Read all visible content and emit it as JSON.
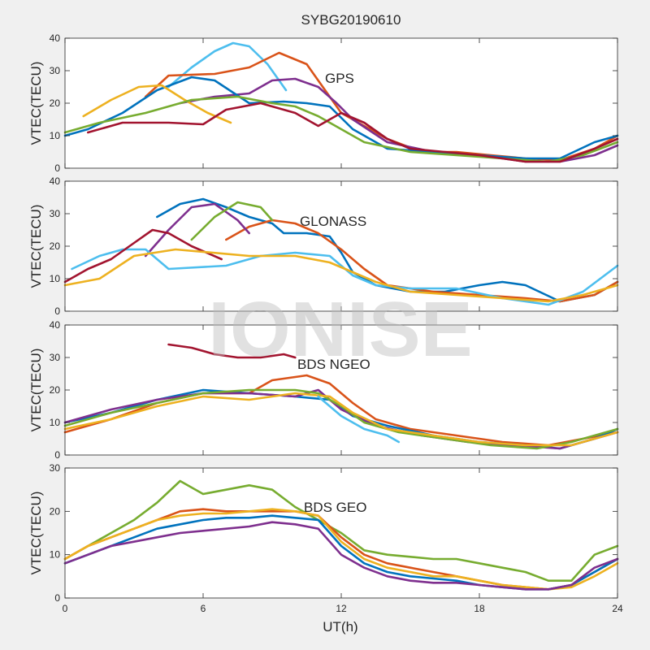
{
  "figure": {
    "title": "SYBG20190610",
    "xlabel": "UT(h)",
    "watermark": "IONISE"
  },
  "chart_data": [
    {
      "type": "line",
      "panel_label": "GPS",
      "ylabel": "VTEC(TECU)",
      "xlim": [
        0,
        24
      ],
      "ylim": [
        0,
        40
      ],
      "xticks": [
        0,
        6,
        12,
        18,
        24
      ],
      "yticks": [
        0,
        10,
        20,
        30,
        40
      ],
      "grid": false,
      "series": [
        {
          "color": "#4dbeee",
          "x": [
            4.5,
            5.5,
            6.5,
            7.3,
            8.0,
            8.8,
            9.6
          ],
          "y": [
            25,
            31,
            36,
            38.5,
            37.5,
            32,
            24
          ]
        },
        {
          "color": "#d95319",
          "x": [
            3.5,
            4.5,
            6.5,
            8.0,
            9.3,
            10.5,
            11.2,
            12.0,
            13.0,
            14.0,
            15.5,
            17.0,
            18.5,
            20.0,
            21.5,
            23.0,
            24.0
          ],
          "y": [
            22,
            28.5,
            29,
            31,
            35.5,
            32,
            25,
            17,
            13,
            9,
            5,
            5,
            4,
            3,
            2.5,
            6,
            10
          ]
        },
        {
          "color": "#7e2f8e",
          "x": [
            5.0,
            6.5,
            8.0,
            9.0,
            10.0,
            11.0,
            11.8,
            12.5,
            14.0,
            16.0,
            18.0,
            20.0,
            21.5,
            23.0,
            24.0
          ],
          "y": [
            20,
            22,
            23,
            27,
            27.5,
            25,
            20,
            15,
            8,
            5,
            4,
            2,
            2,
            4,
            7
          ]
        },
        {
          "color": "#0072bd",
          "x": [
            0,
            1.0,
            2.5,
            4.0,
            5.5,
            6.5,
            8.0,
            9.5,
            10.5,
            11.5,
            12.5,
            14.0,
            16.0,
            18.0,
            20.0,
            21.5,
            23.0,
            24.0
          ],
          "y": [
            10,
            12,
            17,
            24,
            28,
            27,
            20,
            20.5,
            20,
            19,
            12,
            6,
            5,
            4,
            3,
            3,
            8,
            10
          ]
        },
        {
          "color": "#edb120",
          "x": [
            0.8,
            2.0,
            3.2,
            4.2,
            5.2,
            6.2,
            7.2
          ],
          "y": [
            16,
            21,
            25,
            25.5,
            21,
            17,
            14
          ]
        },
        {
          "color": "#77ac30",
          "x": [
            0,
            1.5,
            3.5,
            5.5,
            7.5,
            9.0,
            10.0,
            11.0,
            12.0,
            13.0,
            15.0,
            17.0,
            19.0,
            21.0,
            22.5,
            24.0
          ],
          "y": [
            11,
            14,
            17,
            21,
            22,
            20,
            19,
            16,
            12,
            8,
            5,
            4,
            3,
            2,
            4,
            8
          ]
        },
        {
          "color": "#a2142f",
          "x": [
            1.0,
            2.5,
            4.5,
            6.0,
            7.0,
            8.5,
            10.0,
            11.0,
            12.0,
            13.0,
            14.0,
            15.0,
            16.5,
            18.0,
            20.0,
            21.5,
            23.0,
            24.0
          ],
          "y": [
            11,
            14,
            14,
            13.5,
            18,
            20,
            17,
            13,
            17,
            14,
            9,
            6,
            5,
            4,
            2,
            2,
            6,
            9
          ]
        }
      ]
    },
    {
      "type": "line",
      "panel_label": "GLONASS",
      "ylabel": "VTEC(TECU)",
      "xlim": [
        0,
        24
      ],
      "ylim": [
        0,
        40
      ],
      "xticks": [
        0,
        6,
        12,
        18,
        24
      ],
      "yticks": [
        0,
        10,
        20,
        30,
        40
      ],
      "grid": false,
      "series": [
        {
          "color": "#0072bd",
          "x": [
            4.0,
            5.0,
            6.0,
            7.0,
            8.0,
            9.0,
            9.5,
            10.5,
            11.5,
            12.0,
            12.5,
            13.5,
            15.0,
            16.5,
            18.0,
            19.0,
            20.0,
            21.5,
            23.0,
            24.0
          ],
          "y": [
            29,
            33,
            34.5,
            32,
            29,
            27,
            24,
            24,
            23,
            18,
            12,
            8,
            6,
            6,
            8,
            9,
            8,
            3,
            5,
            9
          ]
        },
        {
          "color": "#d95319",
          "x": [
            7.0,
            8.0,
            9.0,
            10.0,
            11.0,
            12.0,
            13.0,
            14.0,
            16.0,
            18.0,
            20.0,
            21.5,
            23.0,
            24.0
          ],
          "y": [
            22,
            26,
            28,
            27,
            24,
            19,
            13,
            8,
            6,
            5,
            4,
            3,
            5,
            9
          ]
        },
        {
          "color": "#7e2f8e",
          "x": [
            3.5,
            4.5,
            5.5,
            6.5,
            7.5,
            8.0
          ],
          "y": [
            17,
            25,
            32,
            33,
            28,
            24
          ]
        },
        {
          "color": "#77ac30",
          "x": [
            5.5,
            6.5,
            7.5,
            8.5,
            9.0
          ],
          "y": [
            22,
            29,
            33.5,
            32,
            28
          ]
        },
        {
          "color": "#4dbeee",
          "x": [
            0.3,
            1.5,
            2.5,
            3.5,
            4.5,
            7.0,
            8.5,
            10.0,
            11.5,
            12.5,
            13.5,
            15.0,
            17.0,
            19.0,
            21.0,
            22.5,
            24.0
          ],
          "y": [
            13,
            17,
            19,
            19,
            13,
            14,
            17,
            18,
            17,
            11,
            8,
            7,
            7,
            4,
            2,
            6,
            14
          ]
        },
        {
          "color": "#a2142f",
          "x": [
            0,
            1.0,
            2.0,
            3.0,
            3.8,
            4.5,
            5.5,
            6.8
          ],
          "y": [
            9,
            13,
            16,
            21,
            25,
            24,
            20,
            16
          ]
        },
        {
          "color": "#edb120",
          "x": [
            0,
            1.5,
            3.0,
            4.8,
            8.0,
            10.0,
            11.5,
            12.5,
            13.5,
            15.0,
            17.0,
            19.0,
            21.0,
            22.5,
            24.0
          ],
          "y": [
            8,
            10,
            17,
            19,
            17,
            17,
            15,
            12,
            9,
            6,
            5,
            4,
            3,
            5,
            8
          ]
        }
      ]
    },
    {
      "type": "line",
      "panel_label": "BDS NGEO",
      "ylabel": "VTEC(TECU)",
      "xlim": [
        0,
        24
      ],
      "ylim": [
        0,
        40
      ],
      "xticks": [
        0,
        6,
        12,
        18,
        24
      ],
      "yticks": [
        0,
        10,
        20,
        30,
        40
      ],
      "grid": false,
      "series": [
        {
          "color": "#a2142f",
          "x": [
            4.5,
            5.5,
            6.5,
            7.5,
            8.5,
            9.5,
            10.0
          ],
          "y": [
            34,
            33,
            31,
            30,
            30,
            31,
            30
          ]
        },
        {
          "color": "#d95319",
          "x": [
            0,
            2.0,
            4.0,
            6.0,
            8.0,
            9.0,
            10.5,
            11.5,
            12.5,
            13.5,
            15.0,
            17.0,
            19.0,
            21.0,
            22.5,
            24.0
          ],
          "y": [
            7,
            11,
            16,
            19,
            19,
            23,
            24.5,
            22,
            16,
            11,
            8,
            6,
            4,
            3,
            5,
            7
          ]
        },
        {
          "color": "#0072bd",
          "x": [
            0,
            2.0,
            4.0,
            6.0,
            8.0,
            10.0,
            11.5,
            12.5,
            14.0,
            16.0,
            18.0,
            20.0,
            21.5,
            23.0,
            24.0
          ],
          "y": [
            10,
            13,
            17,
            20,
            19,
            18,
            17,
            12,
            9,
            6,
            4,
            3,
            2,
            5,
            8
          ]
        },
        {
          "color": "#7e2f8e",
          "x": [
            0,
            2.0,
            4.0,
            6.0,
            8.0,
            10.0,
            11.0,
            12.0,
            13.5,
            15.5,
            17.5,
            19.5,
            21.5,
            23.0,
            24.0
          ],
          "y": [
            10,
            14,
            17,
            19,
            19,
            18,
            20,
            14,
            9,
            6,
            4,
            3,
            2,
            5,
            7
          ]
        },
        {
          "color": "#77ac30",
          "x": [
            0,
            2.0,
            4.0,
            6.0,
            8.0,
            10.0,
            11.0,
            12.0,
            13.0,
            14.5,
            16.5,
            18.5,
            20.5,
            22.0,
            24.0
          ],
          "y": [
            9,
            13,
            16,
            19,
            20,
            20,
            19,
            15,
            10,
            7,
            5,
            3,
            2,
            4,
            8
          ]
        },
        {
          "color": "#edb120",
          "x": [
            0,
            2.0,
            4.0,
            6.0,
            8.0,
            10.0,
            11.5,
            12.5,
            14.0,
            16.0,
            18.0,
            20.0,
            22.0,
            24.0
          ],
          "y": [
            8,
            11,
            15,
            18,
            17,
            19,
            18,
            13,
            8,
            6,
            4,
            3,
            3,
            7
          ]
        },
        {
          "color": "#4dbeee",
          "x": [
            11.0,
            12.0,
            13.0,
            14.0,
            14.5
          ],
          "y": [
            18,
            12,
            8,
            6,
            4
          ]
        }
      ]
    },
    {
      "type": "line",
      "panel_label": "BDS GEO",
      "ylabel": "VTEC(TECU)",
      "xlim": [
        0,
        24
      ],
      "ylim": [
        0,
        30
      ],
      "xticks": [
        0,
        6,
        12,
        18,
        24
      ],
      "yticks": [
        0,
        10,
        20,
        30
      ],
      "grid": false,
      "series": [
        {
          "color": "#77ac30",
          "x": [
            0,
            1.0,
            2.0,
            3.0,
            4.0,
            5.0,
            6.0,
            7.0,
            8.0,
            9.0,
            10.0,
            11.0,
            12.0,
            13.0,
            14.0,
            15.0,
            16.0,
            17.0,
            18.0,
            19.0,
            20.0,
            21.0,
            22.0,
            23.0,
            24.0
          ],
          "y": [
            9,
            12,
            15,
            18,
            22,
            27,
            24,
            25,
            26,
            25,
            21,
            18,
            15,
            11,
            10,
            9.5,
            9,
            9,
            8,
            7,
            6,
            4,
            4,
            10,
            12
          ]
        },
        {
          "color": "#d95319",
          "x": [
            0,
            1.0,
            2.0,
            3.0,
            4.0,
            5.0,
            6.0,
            7.0,
            8.0,
            9.0,
            10.0,
            11.0,
            12.0,
            13.0,
            14.0,
            15.0,
            16.0,
            17.0,
            18.0,
            19.0,
            20.0,
            21.0,
            22.0,
            23.0,
            24.0
          ],
          "y": [
            9,
            12,
            14,
            16,
            18,
            20,
            20.5,
            20,
            20,
            20,
            20,
            19,
            14,
            10,
            8,
            7,
            6,
            5,
            4,
            3,
            2.5,
            2,
            3,
            6,
            9
          ]
        },
        {
          "color": "#edb120",
          "x": [
            0,
            1.0,
            2.0,
            3.0,
            4.0,
            5.0,
            6.0,
            7.0,
            8.0,
            9.0,
            10.0,
            11.0,
            12.0,
            13.0,
            14.0,
            15.0,
            16.0,
            17.0,
            18.0,
            19.0,
            20.0,
            21.0,
            22.0,
            23.0,
            24.0
          ],
          "y": [
            9,
            12,
            14,
            16,
            18,
            19,
            19.5,
            19.5,
            20,
            20.5,
            20,
            19,
            13,
            9,
            7,
            6,
            5,
            5,
            4,
            3,
            2.5,
            2,
            2.5,
            5,
            8
          ]
        },
        {
          "color": "#0072bd",
          "x": [
            0,
            1.0,
            2.0,
            3.0,
            4.0,
            5.0,
            6.0,
            7.0,
            8.0,
            9.0,
            10.0,
            11.0,
            12.0,
            13.0,
            14.0,
            15.0,
            16.0,
            17.0,
            18.0,
            19.0,
            20.0,
            21.0,
            22.0,
            23.0,
            24.0
          ],
          "y": [
            8,
            10,
            12,
            14,
            16,
            17,
            18,
            18.5,
            18.5,
            19,
            18.5,
            18,
            12,
            8,
            6,
            5,
            4.5,
            4,
            3,
            2.5,
            2,
            2,
            3,
            6,
            9
          ]
        },
        {
          "color": "#7e2f8e",
          "x": [
            0,
            1.0,
            2.0,
            3.0,
            4.0,
            5.0,
            6.0,
            7.0,
            8.0,
            9.0,
            10.0,
            11.0,
            12.0,
            13.0,
            14.0,
            15.0,
            16.0,
            17.0,
            18.0,
            19.0,
            20.0,
            21.0,
            22.0,
            23.0,
            24.0
          ],
          "y": [
            8,
            10,
            12,
            13,
            14,
            15,
            15.5,
            16,
            16.5,
            17.5,
            17,
            16,
            10,
            7,
            5,
            4,
            3.5,
            3.5,
            3,
            2.5,
            2,
            2,
            3,
            7,
            9
          ]
        }
      ]
    }
  ]
}
